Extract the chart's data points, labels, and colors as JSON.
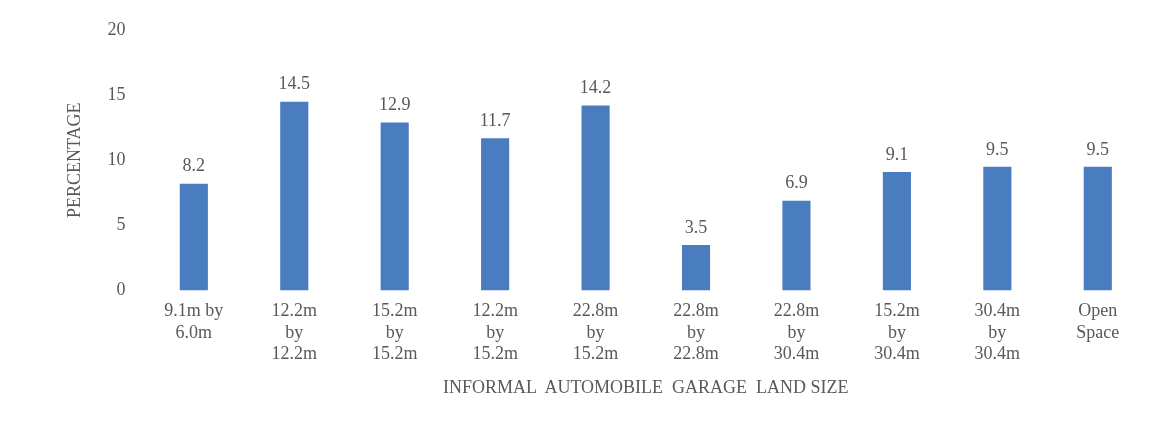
{
  "chart_data": {
    "type": "bar",
    "xlabel": "INFORMAL  AUTOMOBILE  GARAGE  LAND SIZE",
    "ylabel": "PERCENTAGE",
    "categories": [
      "9.1m by 6.0m",
      "12.2m by 12.2m",
      "15.2m by 15.2m",
      "12.2m by 15.2m",
      "22.8m by 15.2m",
      "22.8m by 22.8m",
      "22.8m by 30.4m",
      "15.2m by 30.4m",
      "30.4m by 30.4m",
      "Open Space"
    ],
    "values": [
      8.2,
      14.5,
      12.9,
      11.7,
      14.2,
      3.5,
      6.9,
      9.1,
      9.5,
      9.5
    ],
    "color": "#4a7cc0",
    "ylim": [
      0,
      20
    ],
    "yticks": [
      0,
      5,
      10,
      15,
      20
    ],
    "grid": false,
    "legend": false,
    "data_labels": true
  }
}
